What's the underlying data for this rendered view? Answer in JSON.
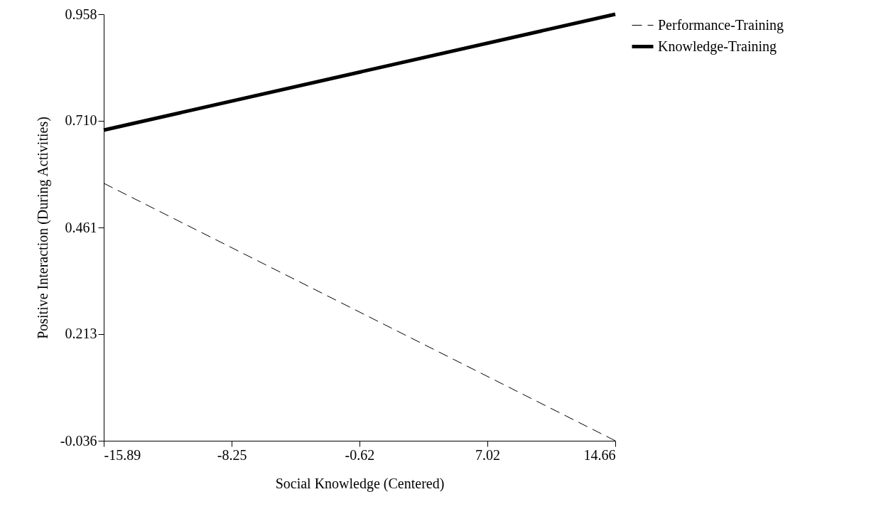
{
  "chart_data": {
    "type": "line",
    "xlabel": "Social Knowledge (Centered)",
    "ylabel": "Positive Interaction (During Activities)",
    "x": [
      -15.89,
      14.66
    ],
    "series": [
      {
        "name": "Performance-Training",
        "color": "#000000",
        "values": [
          0.564,
          -0.036
        ],
        "line_style": "dashed"
      },
      {
        "name": "Knowledge-Training",
        "color": "#000000",
        "values": [
          0.688,
          0.958
        ],
        "line_style": "solid"
      }
    ],
    "xlim": [
      -15.89,
      14.66
    ],
    "xticks": [
      -15.89,
      -8.25,
      -0.62,
      7.02,
      14.66
    ],
    "ylim": [
      -0.036,
      0.958
    ],
    "yticks": [
      -0.036,
      0.213,
      0.461,
      {
        "value": 0.71,
        "label": "0.710"
      },
      0.958
    ],
    "grid": false,
    "legend": "top right"
  }
}
